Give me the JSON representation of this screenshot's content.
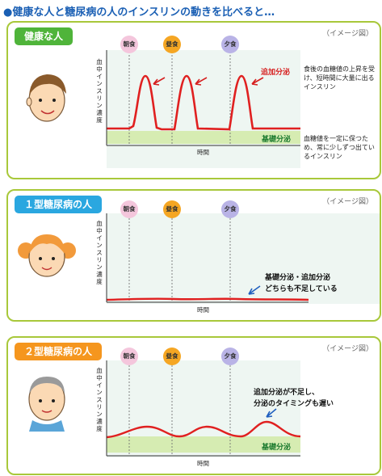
{
  "title": "●健康な人と糖尿病の人のインスリンの動きを比べると…",
  "image_note": "（イメージ図）",
  "y_axis_label": "血中インスリン濃度",
  "x_axis_label": "時間",
  "meals": [
    "朝食",
    "昼食",
    "夕食"
  ],
  "meal_colors": [
    "#f4c6dc",
    "#f5a623",
    "#b9b3e6"
  ],
  "label_additional": "追加分泌",
  "label_basal": "基礎分泌",
  "panels": [
    {
      "name": "健康な人",
      "tag_color": "#4fb43a",
      "note_top": "食後の血糖値の上昇を受け、短時間に大量に出るインスリン",
      "note_bottom": "血糖値を一定に保つため、常に少しずつ出ているインスリン"
    },
    {
      "name": "１型糖尿病の人",
      "tag_color": "#2aa7e0",
      "annotation_line1": "基礎分泌・追加分泌",
      "annotation_line2": "どちらも不足している"
    },
    {
      "name": "２型糖尿病の人",
      "tag_color": "#f5961e",
      "annotation_line1": "追加分泌が不足し、",
      "annotation_line2": "分泌のタイミングも遅い"
    }
  ]
}
